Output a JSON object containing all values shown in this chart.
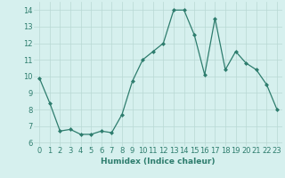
{
  "xlabel": "Humidex (Indice chaleur)",
  "ylabel": "",
  "x": [
    0,
    1,
    2,
    3,
    4,
    5,
    6,
    7,
    8,
    9,
    10,
    11,
    12,
    13,
    14,
    15,
    16,
    17,
    18,
    19,
    20,
    21,
    22,
    23
  ],
  "y": [
    9.9,
    8.4,
    6.7,
    6.8,
    6.5,
    6.5,
    6.7,
    6.6,
    7.7,
    9.7,
    11.0,
    11.5,
    12.0,
    14.0,
    14.0,
    12.5,
    10.1,
    13.5,
    10.4,
    11.5,
    10.8,
    10.4,
    9.5,
    8.0
  ],
  "line_color": "#2e7d6e",
  "marker": "D",
  "marker_size": 2.0,
  "line_width": 0.9,
  "background_color": "#d6f0ee",
  "grid_color": "#b8d8d4",
  "tick_color": "#2e7d6e",
  "ylim": [
    5.8,
    14.5
  ],
  "xlim": [
    -0.5,
    23.5
  ],
  "yticks": [
    6,
    7,
    8,
    9,
    10,
    11,
    12,
    13,
    14
  ],
  "xticks": [
    0,
    1,
    2,
    3,
    4,
    5,
    6,
    7,
    8,
    9,
    10,
    11,
    12,
    13,
    14,
    15,
    16,
    17,
    18,
    19,
    20,
    21,
    22,
    23
  ],
  "xlabel_fontsize": 6.5,
  "tick_fontsize": 6.0,
  "figsize": [
    3.2,
    2.0
  ],
  "dpi": 100
}
